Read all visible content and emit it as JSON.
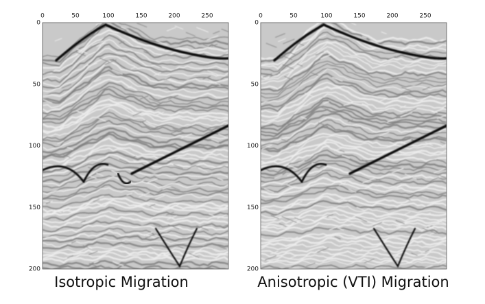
{
  "panels": [
    {
      "caption": "Isotropic Migration",
      "xticks": [
        0,
        50,
        100,
        150,
        200,
        250
      ],
      "yticks": [
        0,
        50,
        100,
        150,
        200
      ]
    },
    {
      "caption": "Anisotropic (VTI) Migration",
      "xticks": [
        0,
        50,
        100,
        150,
        200,
        250
      ],
      "yticks": [
        0,
        50,
        100,
        150,
        200
      ]
    }
  ]
}
